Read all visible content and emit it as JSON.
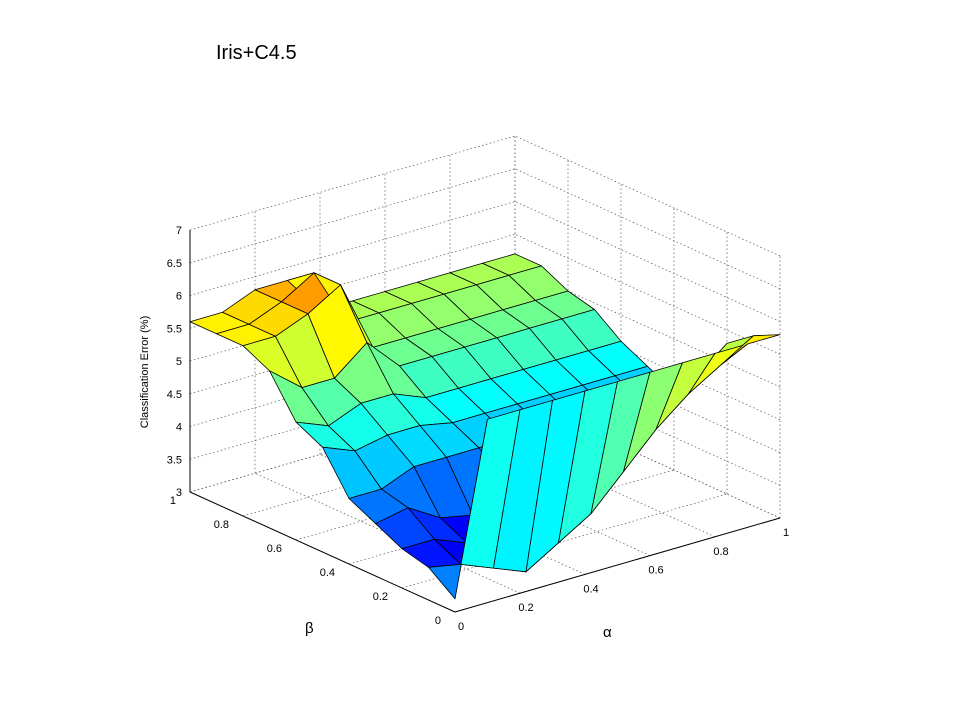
{
  "title": "Iris+C4.5",
  "chart_data": {
    "type": "surface3d",
    "title": "Iris+C4.5",
    "xlabel": "α",
    "ylabel": "β",
    "zlabel": "Classification Error (%)",
    "xlim": [
      0,
      1
    ],
    "ylim": [
      0,
      1
    ],
    "zlim": [
      3,
      7
    ],
    "grid": true,
    "colormap": "jet",
    "x_ticks": [
      "0",
      "0.2",
      "0.4",
      "0.6",
      "0.8",
      "1"
    ],
    "y_ticks": [
      "0",
      "0.2",
      "0.4",
      "0.6",
      "0.8",
      "1"
    ],
    "z_ticks": [
      "3",
      "3.5",
      "4",
      "4.5",
      "5",
      "5.5",
      "6",
      "6.5",
      "7"
    ],
    "alpha_values": [
      0,
      0.1,
      0.2,
      0.3,
      0.4,
      0.5,
      0.6,
      0.7,
      0.8,
      0.9,
      1.0
    ],
    "beta_values": [
      1.0,
      0.9,
      0.8,
      0.7,
      0.6,
      0.5,
      0.4,
      0.3,
      0.2,
      0.1,
      0.0
    ],
    "z_grid": [
      [
        5.6,
        5.6,
        5.8,
        5.8,
        5.2,
        5.2,
        5.2,
        5.2,
        5.2,
        5.2,
        5.2
      ],
      [
        5.6,
        5.6,
        5.8,
        6.1,
        5.2,
        5.2,
        5.2,
        5.2,
        5.2,
        5.2,
        5.2
      ],
      [
        5.6,
        5.6,
        5.8,
        6.1,
        5.0,
        5.0,
        5.0,
        5.0,
        5.0,
        5.0,
        5.0
      ],
      [
        5.4,
        5.0,
        5.0,
        5.4,
        4.9,
        4.9,
        4.9,
        4.9,
        4.9,
        4.9,
        4.9
      ],
      [
        4.8,
        4.6,
        4.8,
        4.8,
        4.6,
        4.6,
        4.6,
        4.6,
        4.6,
        4.6,
        4.6
      ],
      [
        4.6,
        4.4,
        4.5,
        4.5,
        4.4,
        4.4,
        4.4,
        4.4,
        4.4,
        4.4,
        4.4
      ],
      [
        4.0,
        4.0,
        4.2,
        4.2,
        4.2,
        4.2,
        4.2,
        4.2,
        4.2,
        4.2,
        4.2
      ],
      [
        3.8,
        3.9,
        3.6,
        3.5,
        3.8,
        3.9,
        4.1,
        4.2,
        4.3,
        4.4,
        4.6
      ],
      [
        3.6,
        3.6,
        3.4,
        3.2,
        3.5,
        3.8,
        4.0,
        4.3,
        4.6,
        4.9,
        5.3
      ],
      [
        3.5,
        3.4,
        3.2,
        3.0,
        3.3,
        3.6,
        4.1,
        4.6,
        5.0,
        5.3,
        5.6
      ],
      [
        3.2,
        5.8,
        5.8,
        5.8,
        5.8,
        5.8,
        5.8,
        5.8,
        5.8,
        5.8,
        5.8
      ]
    ]
  }
}
